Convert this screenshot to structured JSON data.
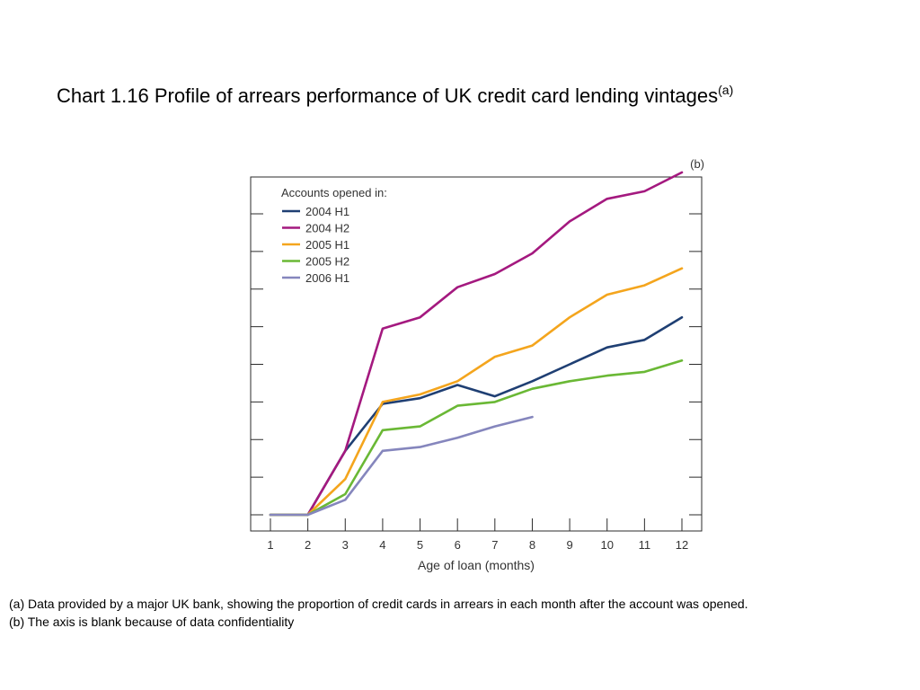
{
  "title": {
    "main": "Chart 1.16  Profile of arrears performance of UK credit card lending vintages",
    "superscript": "(a)"
  },
  "footnotes": {
    "a": "(a) Data provided by a major UK bank, showing the proportion of credit cards in arrears in each month after the account was opened.",
    "b": "(b) The axis is blank because of data confidentiality"
  },
  "chart_data": {
    "type": "line",
    "axis_note": "(b)",
    "xlabel": "Age of loan (months)",
    "ylabel": "",
    "x": [
      1,
      2,
      3,
      4,
      5,
      6,
      7,
      8,
      9,
      10,
      11,
      12
    ],
    "xlim": [
      1,
      12
    ],
    "ylim": [
      0,
      9
    ],
    "ytick_count": 9,
    "y_tick_labels_shown": false,
    "legend": {
      "title": "Accounts opened in:",
      "position": "top-left"
    },
    "series": [
      {
        "name": "2004 H1",
        "color": "#1f3f73",
        "x": [
          1,
          2,
          3,
          4,
          5,
          6,
          7,
          8,
          9,
          10,
          11,
          12
        ],
        "values": [
          0,
          0,
          1.7,
          2.95,
          3.1,
          3.45,
          3.15,
          3.55,
          4.0,
          4.45,
          4.65,
          5.25
        ]
      },
      {
        "name": "2004 H2",
        "color": "#a4197f",
        "x": [
          1,
          2,
          3,
          4,
          5,
          6,
          7,
          8,
          9,
          10,
          11,
          12
        ],
        "values": [
          0,
          0,
          1.7,
          4.95,
          5.25,
          6.05,
          6.4,
          6.95,
          7.8,
          8.4,
          8.6,
          9.1
        ]
      },
      {
        "name": "2005 H1",
        "color": "#f4a51d",
        "x": [
          1,
          2,
          3,
          4,
          5,
          6,
          7,
          8,
          9,
          10,
          11,
          12
        ],
        "values": [
          0,
          0,
          0.95,
          3.0,
          3.2,
          3.55,
          4.2,
          4.5,
          5.25,
          5.85,
          6.1,
          6.55
        ]
      },
      {
        "name": "2005 H2",
        "color": "#6ab835",
        "x": [
          1,
          2,
          3,
          4,
          5,
          6,
          7,
          8
        ],
        "values": [
          0,
          0,
          0.55,
          2.25,
          2.35,
          2.9,
          3.0,
          3.35
        ],
        "x_extra": [
          9,
          10,
          11,
          12
        ],
        "values_extra": [
          3.55,
          3.7,
          3.8,
          4.1
        ]
      },
      {
        "name": "2006 H1",
        "color": "#8586bd",
        "x": [
          1,
          2,
          3,
          4,
          5,
          6,
          7,
          8
        ],
        "values": [
          0,
          0,
          0.4,
          1.7,
          1.8,
          2.05,
          2.35,
          2.6
        ]
      }
    ]
  }
}
